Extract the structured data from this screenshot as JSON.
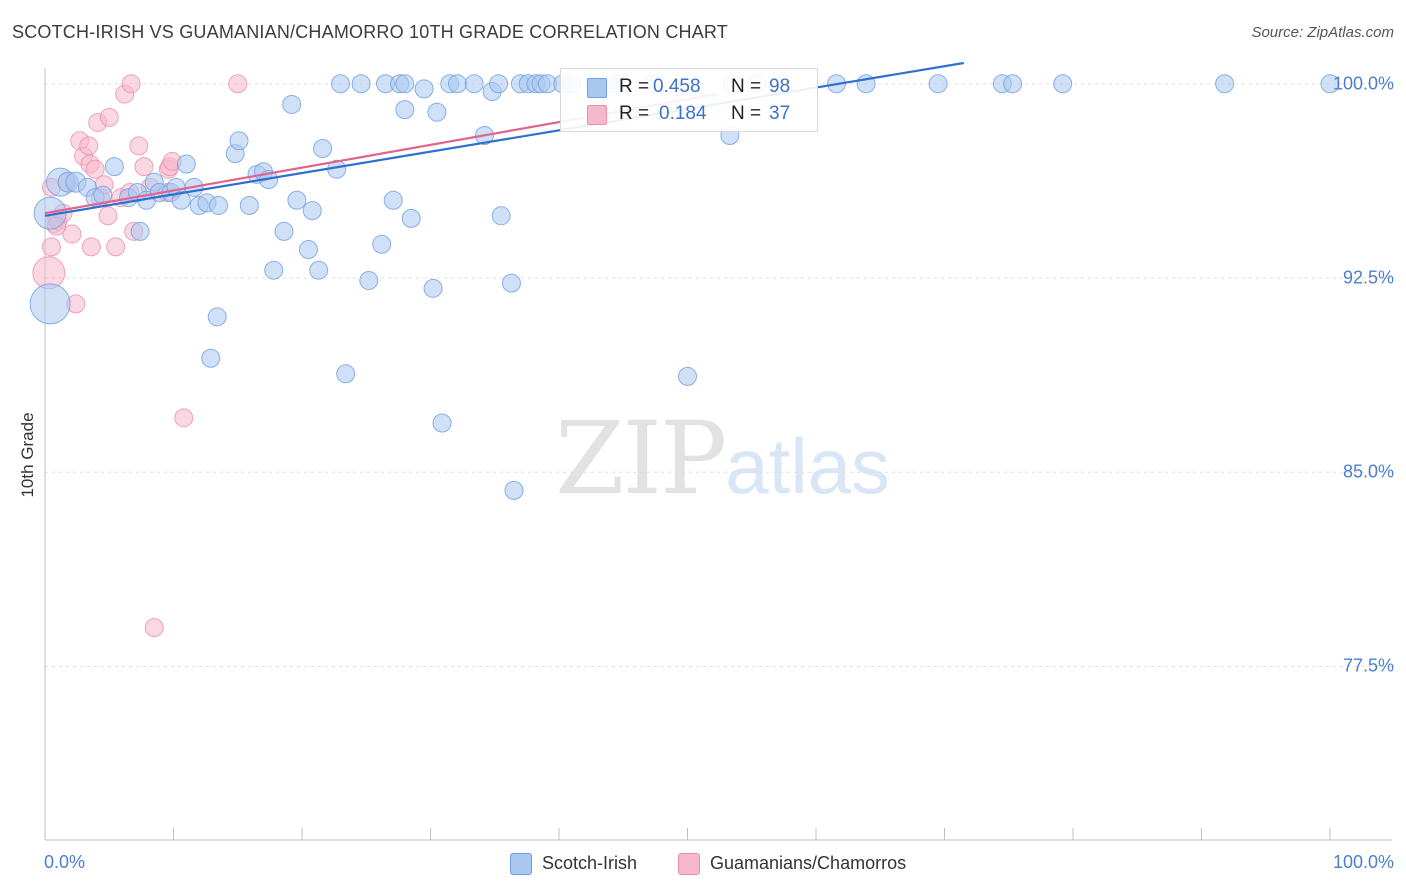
{
  "header": {
    "title": "SCOTCH-IRISH VS GUAMANIAN/CHAMORRO 10TH GRADE CORRELATION CHART",
    "source": "Source: ZipAtlas.com"
  },
  "watermark": {
    "zip": "ZIP",
    "atlas": "atlas"
  },
  "legend": {
    "series1": {
      "r_label": "R = ",
      "r_value": "0.458",
      "n_label": "N = ",
      "n_value": "98"
    },
    "series2": {
      "r_label": "R = ",
      "r_value": "0.184",
      "n_label": "N = ",
      "n_value": "37"
    }
  },
  "bottom_legend": {
    "series1": "Scotch-Irish",
    "series2": "Guamanians/Chamorros"
  },
  "colors": {
    "blue_fill": "#a9c8f0",
    "blue_stroke": "#6f9ee0",
    "blue_line": "#2f6fcf",
    "pink_fill": "#f6b8cb",
    "pink_stroke": "#ec8fae",
    "pink_line": "#e0648f",
    "grid": "#dddddd",
    "axis_text": "#4a7fd0"
  },
  "chart_data": {
    "type": "scatter",
    "title": "SCOTCH-IRISH VS GUAMANIAN/CHAMORRO 10TH GRADE CORRELATION CHART",
    "xlabel": "",
    "ylabel": "10th Grade",
    "xlim": [
      0,
      100
    ],
    "ylim": [
      70.8,
      100.8
    ],
    "x_tick_labels": [
      "0.0%",
      "100.0%"
    ],
    "y_ticks": [
      100.0,
      92.5,
      85.0,
      77.5
    ],
    "y_tick_labels": [
      "100.0%",
      "92.5%",
      "85.0%",
      "77.5%"
    ],
    "grid": true,
    "series": [
      {
        "name": "Scotch-Irish",
        "color": "#6f9ee0",
        "trend": {
          "x": [
            0,
            71.5
          ],
          "y": [
            94.9,
            100.8
          ]
        },
        "points": [
          {
            "x": 1.2,
            "y": 96.2,
            "s": 14
          },
          {
            "x": 0.4,
            "y": 95.0,
            "s": 16
          },
          {
            "x": 0.4,
            "y": 91.5,
            "s": 20
          },
          {
            "x": 1.8,
            "y": 96.2,
            "s": 10
          },
          {
            "x": 2.4,
            "y": 96.2,
            "s": 10
          },
          {
            "x": 3.3,
            "y": 96.0,
            "s": 9
          },
          {
            "x": 3.9,
            "y": 95.6,
            "s": 9
          },
          {
            "x": 4.5,
            "y": 95.7,
            "s": 9
          },
          {
            "x": 5.4,
            "y": 96.8,
            "s": 9
          },
          {
            "x": 6.5,
            "y": 95.6,
            "s": 9
          },
          {
            "x": 7.2,
            "y": 95.8,
            "s": 9
          },
          {
            "x": 7.4,
            "y": 94.3,
            "s": 9
          },
          {
            "x": 7.9,
            "y": 95.5,
            "s": 9
          },
          {
            "x": 8.5,
            "y": 96.2,
            "s": 9
          },
          {
            "x": 8.9,
            "y": 95.8,
            "s": 9
          },
          {
            "x": 9.8,
            "y": 95.8,
            "s": 9
          },
          {
            "x": 10.2,
            "y": 96.0,
            "s": 9
          },
          {
            "x": 10.6,
            "y": 95.5,
            "s": 9
          },
          {
            "x": 11.0,
            "y": 96.9,
            "s": 9
          },
          {
            "x": 11.6,
            "y": 96.0,
            "s": 9
          },
          {
            "x": 12.0,
            "y": 95.3,
            "s": 9
          },
          {
            "x": 12.6,
            "y": 95.4,
            "s": 9
          },
          {
            "x": 13.5,
            "y": 95.3,
            "s": 9
          },
          {
            "x": 13.4,
            "y": 91.0,
            "s": 9
          },
          {
            "x": 12.9,
            "y": 89.4,
            "s": 9
          },
          {
            "x": 14.8,
            "y": 97.3,
            "s": 9
          },
          {
            "x": 15.1,
            "y": 97.8,
            "s": 9
          },
          {
            "x": 15.9,
            "y": 95.3,
            "s": 9
          },
          {
            "x": 16.5,
            "y": 96.5,
            "s": 9
          },
          {
            "x": 17.0,
            "y": 96.6,
            "s": 9
          },
          {
            "x": 17.4,
            "y": 96.3,
            "s": 9
          },
          {
            "x": 17.8,
            "y": 92.8,
            "s": 9
          },
          {
            "x": 18.6,
            "y": 94.3,
            "s": 9
          },
          {
            "x": 19.2,
            "y": 99.2,
            "s": 9
          },
          {
            "x": 19.6,
            "y": 95.5,
            "s": 9
          },
          {
            "x": 20.5,
            "y": 93.6,
            "s": 9
          },
          {
            "x": 20.8,
            "y": 95.1,
            "s": 9
          },
          {
            "x": 21.3,
            "y": 92.8,
            "s": 9
          },
          {
            "x": 21.6,
            "y": 97.5,
            "s": 9
          },
          {
            "x": 22.7,
            "y": 96.7,
            "s": 9
          },
          {
            "x": 23.0,
            "y": 100.0,
            "s": 9
          },
          {
            "x": 23.4,
            "y": 88.8,
            "s": 9
          },
          {
            "x": 24.6,
            "y": 100.0,
            "s": 9
          },
          {
            "x": 25.2,
            "y": 92.4,
            "s": 9
          },
          {
            "x": 26.2,
            "y": 93.8,
            "s": 9
          },
          {
            "x": 26.5,
            "y": 100.0,
            "s": 9
          },
          {
            "x": 27.1,
            "y": 95.5,
            "s": 9
          },
          {
            "x": 27.6,
            "y": 100.0,
            "s": 9
          },
          {
            "x": 28.0,
            "y": 99.0,
            "s": 9
          },
          {
            "x": 28.5,
            "y": 94.8,
            "s": 9
          },
          {
            "x": 28.0,
            "y": 100.0,
            "s": 9
          },
          {
            "x": 29.5,
            "y": 99.8,
            "s": 9
          },
          {
            "x": 30.2,
            "y": 92.1,
            "s": 9
          },
          {
            "x": 30.5,
            "y": 98.9,
            "s": 9
          },
          {
            "x": 30.9,
            "y": 86.9,
            "s": 9
          },
          {
            "x": 31.5,
            "y": 100.0,
            "s": 9
          },
          {
            "x": 32.1,
            "y": 100.0,
            "s": 9
          },
          {
            "x": 33.4,
            "y": 100.0,
            "s": 9
          },
          {
            "x": 34.2,
            "y": 98.0,
            "s": 9
          },
          {
            "x": 34.8,
            "y": 99.7,
            "s": 9
          },
          {
            "x": 35.5,
            "y": 94.9,
            "s": 9
          },
          {
            "x": 35.3,
            "y": 100.0,
            "s": 9
          },
          {
            "x": 36.3,
            "y": 92.3,
            "s": 9
          },
          {
            "x": 36.5,
            "y": 84.3,
            "s": 9
          },
          {
            "x": 37.0,
            "y": 100.0,
            "s": 9
          },
          {
            "x": 37.6,
            "y": 100.0,
            "s": 9
          },
          {
            "x": 38.2,
            "y": 100.0,
            "s": 9
          },
          {
            "x": 38.6,
            "y": 100.0,
            "s": 9
          },
          {
            "x": 39.1,
            "y": 100.0,
            "s": 9
          },
          {
            "x": 40.3,
            "y": 100.0,
            "s": 9
          },
          {
            "x": 41.0,
            "y": 100.0,
            "s": 9
          },
          {
            "x": 42.7,
            "y": 100.0,
            "s": 9
          },
          {
            "x": 44.2,
            "y": 100.0,
            "s": 9
          },
          {
            "x": 44.8,
            "y": 100.0,
            "s": 9
          },
          {
            "x": 47.3,
            "y": 100.0,
            "s": 9
          },
          {
            "x": 50.0,
            "y": 88.7,
            "s": 9
          },
          {
            "x": 53.5,
            "y": 100.0,
            "s": 9
          },
          {
            "x": 53.3,
            "y": 98.0,
            "s": 9
          },
          {
            "x": 55.4,
            "y": 100.0,
            "s": 9
          },
          {
            "x": 61.6,
            "y": 100.0,
            "s": 9
          },
          {
            "x": 63.9,
            "y": 100.0,
            "s": 9
          },
          {
            "x": 69.5,
            "y": 100.0,
            "s": 9
          },
          {
            "x": 74.5,
            "y": 100.0,
            "s": 9
          },
          {
            "x": 75.3,
            "y": 100.0,
            "s": 9
          },
          {
            "x": 79.2,
            "y": 100.0,
            "s": 9
          },
          {
            "x": 91.8,
            "y": 100.0,
            "s": 9
          },
          {
            "x": 100.0,
            "y": 100.0,
            "s": 9
          }
        ]
      },
      {
        "name": "Guamanians/Chamorros",
        "color": "#ec8fae",
        "trend": {
          "x": [
            0,
            52.3
          ],
          "y": [
            95.0,
            99.6
          ]
        },
        "points": [
          {
            "x": 0.3,
            "y": 92.7,
            "s": 16
          },
          {
            "x": 0.5,
            "y": 93.7,
            "s": 9
          },
          {
            "x": 0.7,
            "y": 94.6,
            "s": 9
          },
          {
            "x": 1.0,
            "y": 94.7,
            "s": 9
          },
          {
            "x": 1.4,
            "y": 95.0,
            "s": 9
          },
          {
            "x": 1.7,
            "y": 96.2,
            "s": 9
          },
          {
            "x": 2.1,
            "y": 94.2,
            "s": 9
          },
          {
            "x": 2.4,
            "y": 91.5,
            "s": 9
          },
          {
            "x": 2.7,
            "y": 97.8,
            "s": 9
          },
          {
            "x": 3.0,
            "y": 97.2,
            "s": 9
          },
          {
            "x": 3.4,
            "y": 97.6,
            "s": 9
          },
          {
            "x": 3.5,
            "y": 96.9,
            "s": 9
          },
          {
            "x": 3.6,
            "y": 93.7,
            "s": 9
          },
          {
            "x": 3.9,
            "y": 96.7,
            "s": 9
          },
          {
            "x": 4.1,
            "y": 98.5,
            "s": 9
          },
          {
            "x": 4.3,
            "y": 95.6,
            "s": 9
          },
          {
            "x": 4.6,
            "y": 96.1,
            "s": 9
          },
          {
            "x": 4.9,
            "y": 94.9,
            "s": 9
          },
          {
            "x": 5.0,
            "y": 98.7,
            "s": 9
          },
          {
            "x": 5.5,
            "y": 93.7,
            "s": 9
          },
          {
            "x": 5.9,
            "y": 95.6,
            "s": 9
          },
          {
            "x": 6.2,
            "y": 99.6,
            "s": 9
          },
          {
            "x": 6.6,
            "y": 95.8,
            "s": 9
          },
          {
            "x": 6.7,
            "y": 100.0,
            "s": 9
          },
          {
            "x": 6.9,
            "y": 94.3,
            "s": 9
          },
          {
            "x": 7.3,
            "y": 97.6,
            "s": 9
          },
          {
            "x": 7.7,
            "y": 96.8,
            "s": 9
          },
          {
            "x": 8.2,
            "y": 96.0,
            "s": 9
          },
          {
            "x": 8.5,
            "y": 79.0,
            "s": 9
          },
          {
            "x": 10.8,
            "y": 87.1,
            "s": 9
          },
          {
            "x": 9.5,
            "y": 95.8,
            "s": 9
          },
          {
            "x": 9.6,
            "y": 96.7,
            "s": 9
          },
          {
            "x": 9.7,
            "y": 96.8,
            "s": 9
          },
          {
            "x": 9.9,
            "y": 97.0,
            "s": 9
          },
          {
            "x": 15.0,
            "y": 100.0,
            "s": 9
          },
          {
            "x": 0.5,
            "y": 96.0,
            "s": 9
          },
          {
            "x": 0.9,
            "y": 94.5,
            "s": 9
          }
        ]
      }
    ]
  }
}
